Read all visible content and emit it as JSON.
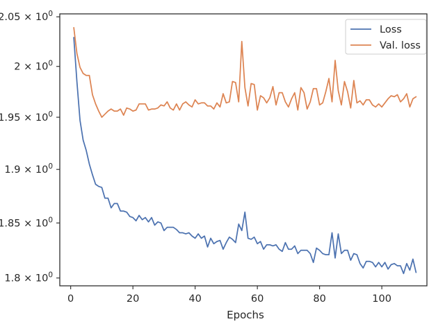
{
  "chart_data": {
    "type": "line",
    "title": "",
    "xlabel": "Epochs",
    "ylabel": "",
    "xlim": [
      -3.5,
      114.5
    ],
    "ylim": [
      1.793,
      2.053
    ],
    "yscale": "log",
    "grid": false,
    "legend_position": "top-right",
    "x_ticks": [
      0,
      20,
      40,
      60,
      80,
      100
    ],
    "x_tick_labels": [
      "0",
      "20",
      "40",
      "60",
      "80",
      "100"
    ],
    "y_ticks": [
      1.8,
      1.85,
      1.9,
      1.95,
      2.0,
      2.05
    ],
    "y_tick_labels": [
      {
        "base": "1.8",
        "exp": "0"
      },
      {
        "base": "1.85",
        "exp": "0"
      },
      {
        "base": "1.9",
        "exp": "0"
      },
      {
        "base": "1.95",
        "exp": "0"
      },
      {
        "base": "2",
        "exp": "0"
      },
      {
        "base": "2.05",
        "exp": "0"
      }
    ],
    "x": [
      1,
      2,
      3,
      4,
      5,
      6,
      7,
      8,
      9,
      10,
      11,
      12,
      13,
      14,
      15,
      16,
      17,
      18,
      19,
      20,
      21,
      22,
      23,
      24,
      25,
      26,
      27,
      28,
      29,
      30,
      31,
      32,
      33,
      34,
      35,
      36,
      37,
      38,
      39,
      40,
      41,
      42,
      43,
      44,
      45,
      46,
      47,
      48,
      49,
      50,
      51,
      52,
      53,
      54,
      55,
      56,
      57,
      58,
      59,
      60,
      61,
      62,
      63,
      64,
      65,
      66,
      67,
      68,
      69,
      70,
      71,
      72,
      73,
      74,
      75,
      76,
      77,
      78,
      79,
      80,
      81,
      82,
      83,
      84,
      85,
      86,
      87,
      88,
      89,
      90,
      91,
      92,
      93,
      94,
      95,
      96,
      97,
      98,
      99,
      100,
      101,
      102,
      103,
      104,
      105,
      106,
      107,
      108,
      109,
      110,
      111
    ],
    "series": [
      {
        "name": "Loss",
        "color": "#4c72b0",
        "values": [
          2.029,
          1.985,
          1.947,
          1.928,
          1.918,
          1.905,
          1.895,
          1.886,
          1.884,
          1.883,
          1.873,
          1.873,
          1.864,
          1.868,
          1.868,
          1.861,
          1.861,
          1.86,
          1.856,
          1.855,
          1.852,
          1.857,
          1.853,
          1.855,
          1.851,
          1.855,
          1.848,
          1.851,
          1.85,
          1.843,
          1.846,
          1.846,
          1.846,
          1.844,
          1.841,
          1.841,
          1.84,
          1.841,
          1.838,
          1.836,
          1.84,
          1.836,
          1.838,
          1.828,
          1.836,
          1.831,
          1.833,
          1.834,
          1.826,
          1.832,
          1.837,
          1.835,
          1.832,
          1.849,
          1.843,
          1.86,
          1.836,
          1.835,
          1.837,
          1.831,
          1.833,
          1.826,
          1.83,
          1.83,
          1.829,
          1.83,
          1.826,
          1.824,
          1.832,
          1.826,
          1.826,
          1.829,
          1.822,
          1.825,
          1.825,
          1.825,
          1.822,
          1.814,
          1.827,
          1.825,
          1.822,
          1.821,
          1.821,
          1.841,
          1.818,
          1.84,
          1.822,
          1.825,
          1.825,
          1.816,
          1.822,
          1.821,
          1.813,
          1.809,
          1.815,
          1.815,
          1.814,
          1.81,
          1.814,
          1.81,
          1.814,
          1.808,
          1.812,
          1.813,
          1.811,
          1.811,
          1.804,
          1.813,
          1.807,
          1.817,
          1.805
        ]
      },
      {
        "name": "Val. loss",
        "color": "#dd8452",
        "values": [
          2.039,
          2.013,
          1.999,
          1.993,
          1.991,
          1.991,
          1.972,
          1.963,
          1.956,
          1.95,
          1.953,
          1.956,
          1.958,
          1.956,
          1.956,
          1.958,
          1.952,
          1.959,
          1.958,
          1.956,
          1.957,
          1.963,
          1.963,
          1.963,
          1.957,
          1.958,
          1.958,
          1.959,
          1.962,
          1.961,
          1.965,
          1.959,
          1.957,
          1.963,
          1.957,
          1.963,
          1.965,
          1.962,
          1.96,
          1.967,
          1.963,
          1.964,
          1.964,
          1.961,
          1.961,
          1.958,
          1.964,
          1.96,
          1.973,
          1.964,
          1.965,
          1.985,
          1.984,
          1.965,
          2.025,
          1.979,
          1.961,
          1.983,
          1.982,
          1.957,
          1.971,
          1.969,
          1.964,
          1.969,
          1.98,
          1.962,
          1.974,
          1.974,
          1.965,
          1.96,
          1.968,
          1.974,
          1.957,
          1.979,
          1.974,
          1.958,
          1.965,
          1.978,
          1.978,
          1.962,
          1.964,
          1.975,
          1.988,
          1.965,
          2.006,
          1.976,
          1.962,
          1.985,
          1.975,
          1.959,
          1.986,
          1.964,
          1.966,
          1.962,
          1.967,
          1.967,
          1.962,
          1.96,
          1.963,
          1.96,
          1.964,
          1.968,
          1.971,
          1.97,
          1.972,
          1.965,
          1.968,
          1.973,
          1.96,
          1.968,
          1.97
        ]
      }
    ]
  }
}
